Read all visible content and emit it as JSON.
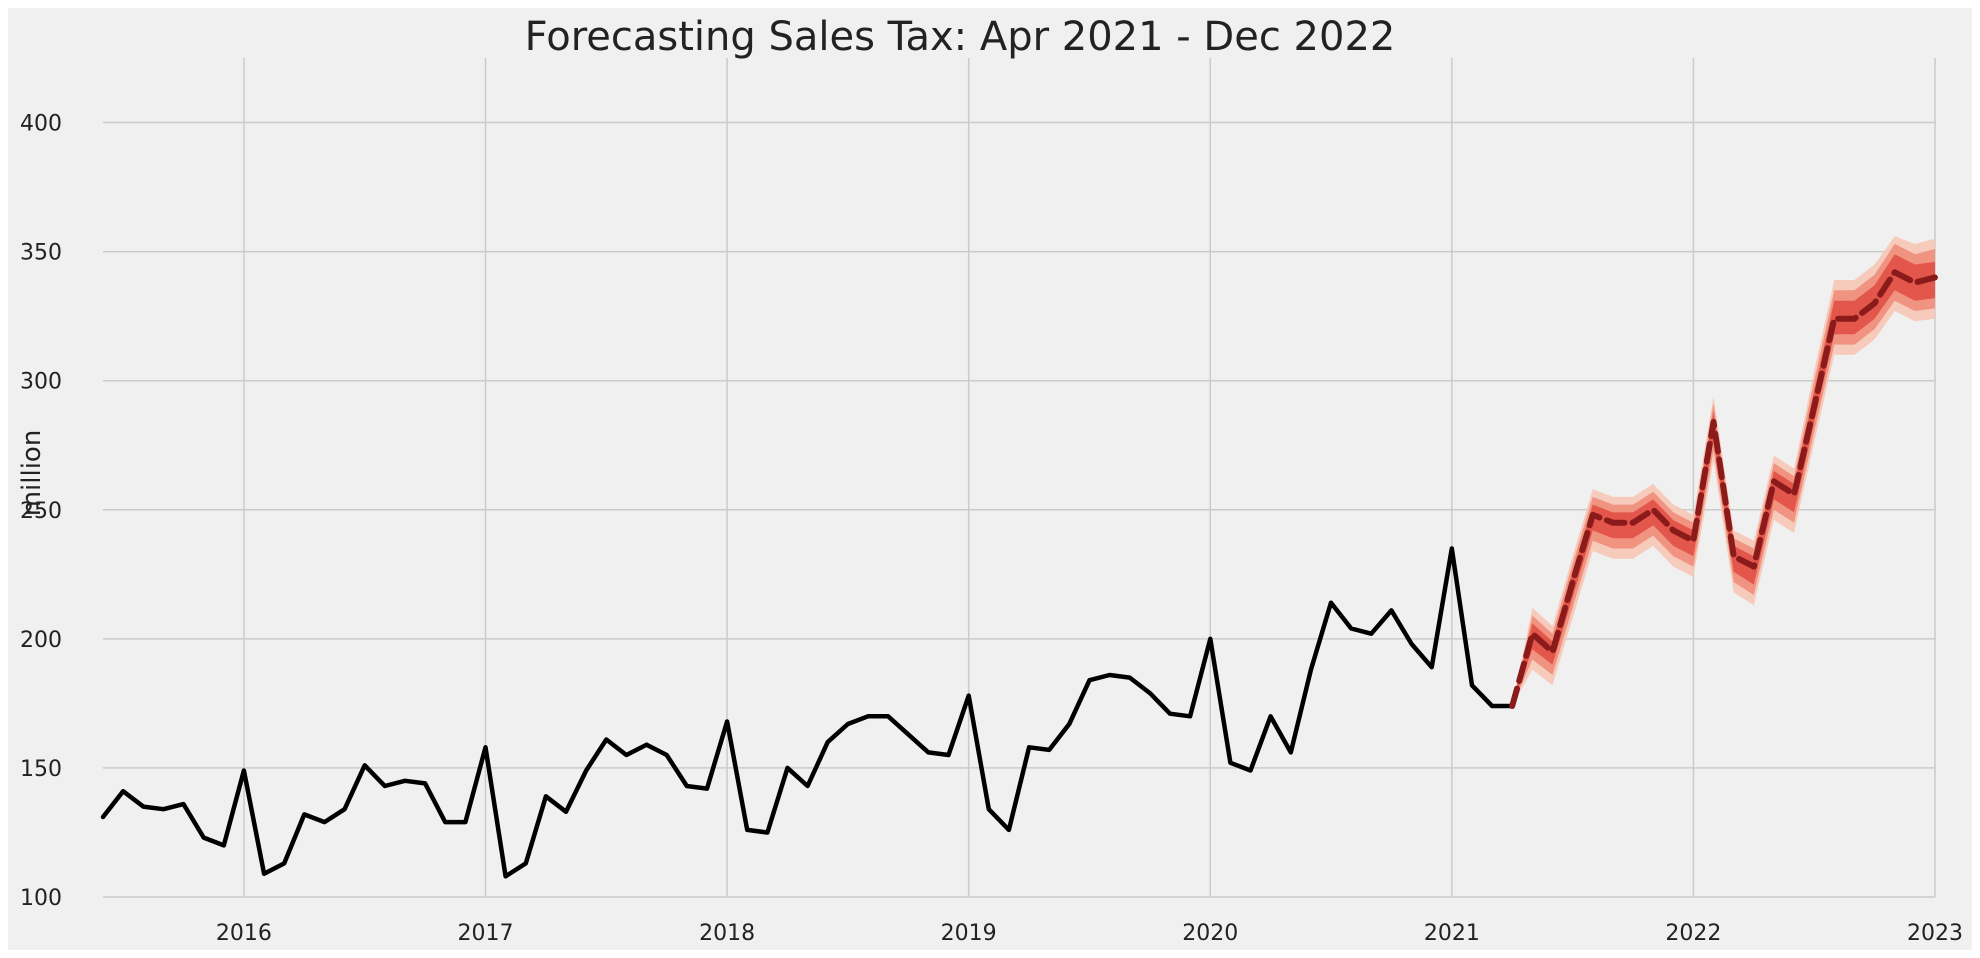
{
  "chart_data": {
    "type": "line",
    "title": "Forecasting Sales Tax: Apr 2021 - Dec  2022",
    "ylabel": "million",
    "xlabel": "",
    "xlim": [
      "2015-06",
      "2023-01"
    ],
    "ylim": [
      100,
      425
    ],
    "grid": true,
    "x_ticks": [
      "2016",
      "2017",
      "2018",
      "2019",
      "2020",
      "2021",
      "2022",
      "2023"
    ],
    "y_ticks": [
      100,
      150,
      200,
      250,
      300,
      350,
      400
    ],
    "colors": {
      "background": "#f0f0f0",
      "grid": "#cbcbcb",
      "history": "#000000",
      "forecast": "#8b1a1a",
      "band_outer": "#f6c7b6",
      "band_mid": "#ee8a75",
      "band_inner": "#e0473d"
    },
    "series": [
      {
        "role": "history",
        "x": [
          "2015-06",
          "2015-07",
          "2015-08",
          "2015-09",
          "2015-10",
          "2015-11",
          "2015-12",
          "2016-01",
          "2016-02",
          "2016-03",
          "2016-04",
          "2016-05",
          "2016-06",
          "2016-07",
          "2016-08",
          "2016-09",
          "2016-10",
          "2016-11",
          "2016-12",
          "2017-01",
          "2017-02",
          "2017-03",
          "2017-04",
          "2017-05",
          "2017-06",
          "2017-07",
          "2017-08",
          "2017-09",
          "2017-10",
          "2017-11",
          "2017-12",
          "2018-01",
          "2018-02",
          "2018-03",
          "2018-04",
          "2018-05",
          "2018-06",
          "2018-07",
          "2018-08",
          "2018-09",
          "2018-10",
          "2018-11",
          "2018-12",
          "2019-01",
          "2019-02",
          "2019-03",
          "2019-04",
          "2019-05",
          "2019-06",
          "2019-07",
          "2019-08",
          "2019-09",
          "2019-10",
          "2019-11",
          "2019-12",
          "2020-01",
          "2020-02",
          "2020-03",
          "2020-04",
          "2020-05",
          "2020-06",
          "2020-07",
          "2020-08",
          "2020-09",
          "2020-10",
          "2020-11",
          "2020-12",
          "2021-01",
          "2021-02",
          "2021-03",
          "2021-04"
        ],
        "values": [
          131,
          141,
          135,
          134,
          136,
          123,
          120,
          149,
          109,
          113,
          132,
          129,
          134,
          151,
          143,
          145,
          144,
          129,
          129,
          158,
          108,
          113,
          139,
          133,
          149,
          161,
          155,
          159,
          155,
          143,
          142,
          168,
          126,
          125,
          150,
          143,
          160,
          167,
          170,
          170,
          163,
          156,
          155,
          178,
          134,
          126,
          158,
          157,
          167,
          184,
          186,
          185,
          179,
          171,
          170,
          200,
          152,
          149,
          170,
          156,
          188,
          214,
          204,
          202,
          211,
          198,
          189,
          235,
          182,
          174,
          174
        ]
      },
      {
        "role": "forecast",
        "x": [
          "2021-04",
          "2021-05",
          "2021-06",
          "2021-07",
          "2021-08",
          "2021-09",
          "2021-10",
          "2021-11",
          "2021-12",
          "2022-01",
          "2022-02",
          "2022-03",
          "2022-04",
          "2022-05",
          "2022-06",
          "2022-07",
          "2022-08",
          "2022-09",
          "2022-10",
          "2022-11",
          "2022-12",
          "2023-01"
        ],
        "values": [
          174,
          202,
          195,
          222,
          248,
          245,
          245,
          250,
          242,
          238,
          284,
          232,
          228,
          261,
          256,
          290,
          324,
          324,
          330,
          342,
          338,
          340
        ]
      }
    ],
    "forecast_intervals": [
      {
        "level": "outer",
        "lower": [
          174,
          188,
          182,
          208,
          234,
          231,
          231,
          236,
          228,
          224,
          269,
          218,
          213,
          246,
          241,
          276,
          310,
          310,
          316,
          327,
          323,
          324
        ],
        "upper": [
          174,
          212,
          205,
          232,
          258,
          255,
          255,
          260,
          252,
          248,
          294,
          242,
          238,
          271,
          266,
          304,
          339,
          339,
          345,
          356,
          353,
          355
        ]
      },
      {
        "level": "middle",
        "lower": [
          174,
          192,
          186,
          212,
          238,
          235,
          235,
          240,
          232,
          228,
          273,
          222,
          217,
          250,
          245,
          280,
          314,
          314,
          320,
          331,
          327,
          328
        ],
        "upper": [
          174,
          209,
          202,
          229,
          255,
          252,
          252,
          257,
          249,
          245,
          291,
          239,
          235,
          268,
          263,
          300,
          335,
          335,
          341,
          353,
          349,
          351
        ]
      },
      {
        "level": "inner",
        "lower": [
          174,
          196,
          190,
          216,
          242,
          239,
          239,
          244,
          236,
          232,
          277,
          226,
          221,
          254,
          249,
          284,
          318,
          318,
          324,
          335,
          331,
          332
        ],
        "upper": [
          174,
          206,
          199,
          226,
          252,
          249,
          249,
          254,
          246,
          242,
          288,
          236,
          232,
          265,
          260,
          296,
          331,
          331,
          337,
          349,
          345,
          346
        ]
      }
    ]
  }
}
